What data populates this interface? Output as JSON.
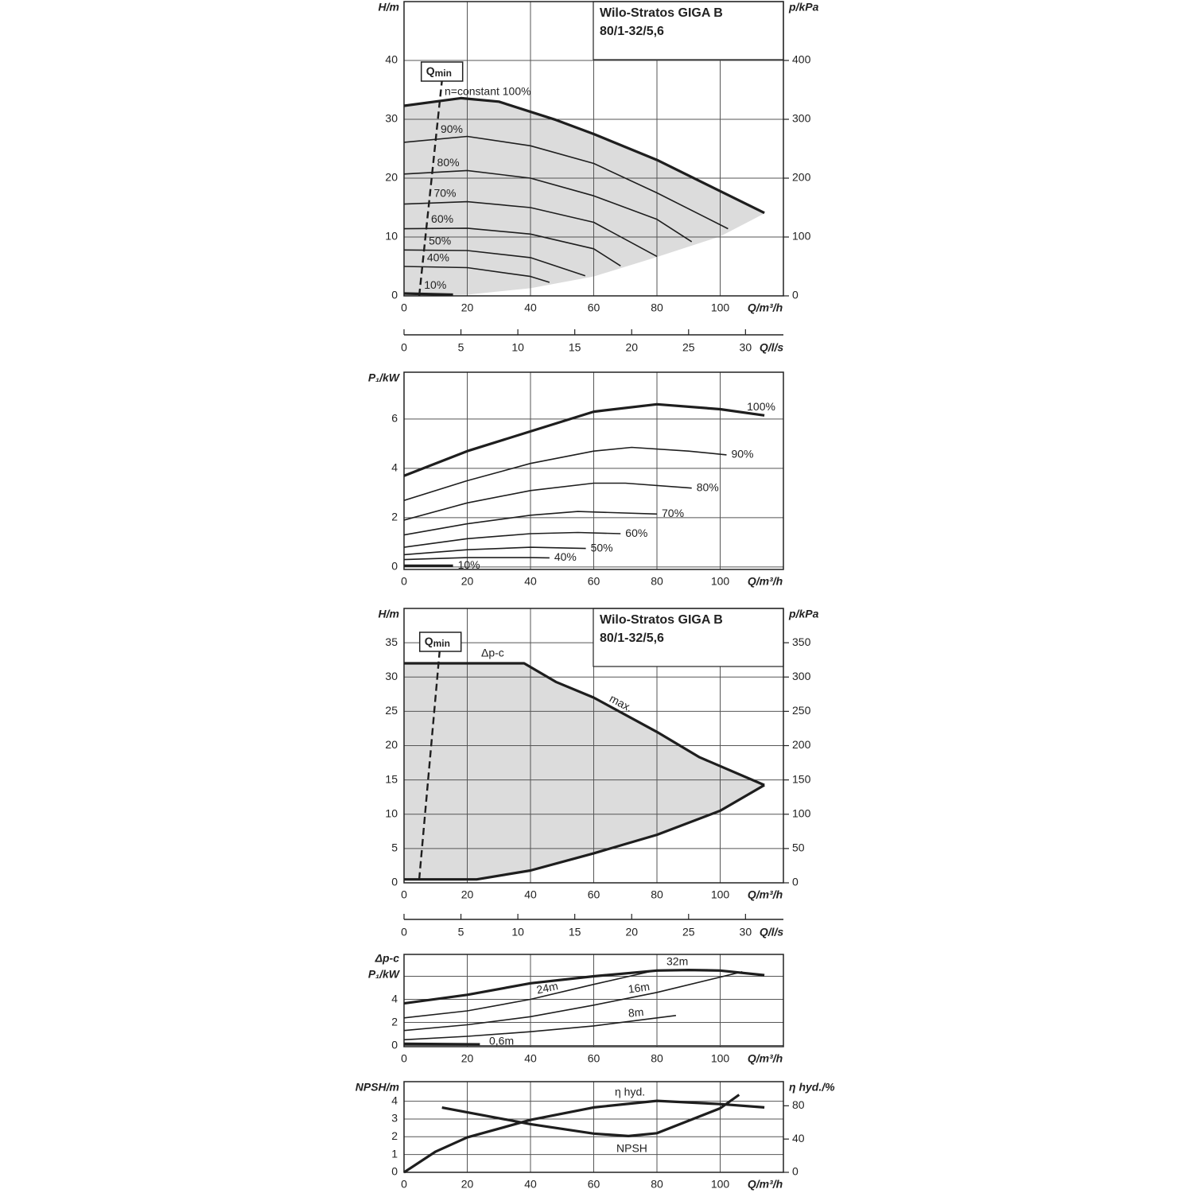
{
  "chart_data": [
    {
      "type": "line",
      "title_lines": [
        "Wilo-Stratos GIGA B",
        "80/1-32/5,6"
      ],
      "ylabel": [
        "H/m"
      ],
      "y2label": "p/kPa",
      "xlabel": "Q/m³/h",
      "xlim": [
        0,
        120
      ],
      "xticks": [
        0,
        20,
        40,
        60,
        80,
        100
      ],
      "ylim": [
        0,
        50
      ],
      "yticks": [
        0,
        10,
        20,
        30,
        40
      ],
      "y2lim": [
        0,
        500
      ],
      "y2ticks": [
        0,
        100,
        200,
        300,
        400
      ],
      "x2lim": [
        0,
        33.33
      ],
      "x2ticks": [
        0,
        5,
        10,
        15,
        20,
        25,
        30
      ],
      "x2label": "Q/l/s",
      "grid": true,
      "shaded": true,
      "shade_color": "#dcdcdc",
      "color": "#1e1e1e",
      "qmin": {
        "label": "Q",
        "sub": "min",
        "x": [
          4.8,
          12
        ],
        "values": [
          0,
          36.6
        ]
      },
      "shade_lower": {
        "x": [
          0,
          20,
          40,
          60,
          80,
          100,
          114
        ],
        "values": [
          0,
          0.2,
          1.3,
          3.3,
          6.6,
          10.1,
          14
        ]
      },
      "series": [
        {
          "name": "n=constant 100%",
          "width": 3.2,
          "x": [
            0,
            18,
            30,
            48,
            60,
            80,
            100,
            114
          ],
          "values": [
            32.3,
            33.6,
            33.0,
            29.9,
            27.5,
            23.1,
            17.8,
            14.1
          ]
        },
        {
          "name": "90%",
          "width": 1.6,
          "x": [
            0,
            20,
            40,
            60,
            80,
            102.5
          ],
          "values": [
            26.1,
            27.1,
            25.5,
            22.5,
            17.5,
            11.4
          ]
        },
        {
          "name": "80%",
          "width": 1.6,
          "x": [
            0,
            20,
            40,
            60,
            80,
            91
          ],
          "values": [
            20.7,
            21.3,
            20,
            17,
            13,
            9.2
          ]
        },
        {
          "name": "70%",
          "width": 1.6,
          "x": [
            0,
            20,
            40,
            60,
            80
          ],
          "values": [
            15.6,
            16,
            15,
            12.5,
            6.7
          ]
        },
        {
          "name": "60%",
          "width": 1.6,
          "x": [
            0,
            20,
            40,
            60,
            68.5
          ],
          "values": [
            11.4,
            11.5,
            10.5,
            8,
            5.1
          ]
        },
        {
          "name": "50%",
          "width": 1.6,
          "x": [
            0,
            20,
            40,
            57.3
          ],
          "values": [
            7.8,
            7.7,
            6.5,
            3.4
          ]
        },
        {
          "name": "40%",
          "width": 1.6,
          "x": [
            0,
            20,
            40,
            46
          ],
          "values": [
            5,
            4.8,
            3.3,
            2.3
          ]
        },
        {
          "name": "10%",
          "width": 3.2,
          "x": [
            0,
            15.5
          ],
          "values": [
            0.4,
            0.2
          ]
        }
      ]
    },
    {
      "type": "line",
      "ylabel": [
        "P₁/kW"
      ],
      "xlabel": "Q/m³/h",
      "xlim": [
        0,
        120
      ],
      "xticks": [
        0,
        20,
        40,
        60,
        80,
        100
      ],
      "ylim": [
        -0.1,
        7.9
      ],
      "yticks": [
        0,
        2,
        4,
        6
      ],
      "grid": true,
      "color": "#1e1e1e",
      "series": [
        {
          "name": "100%",
          "width": 3.2,
          "x": [
            0,
            20,
            40,
            60,
            80,
            100,
            114
          ],
          "values": [
            3.7,
            4.7,
            5.5,
            6.3,
            6.6,
            6.4,
            6.15
          ]
        },
        {
          "name": "90%",
          "width": 1.6,
          "x": [
            0,
            20,
            40,
            60,
            72,
            90,
            102
          ],
          "values": [
            2.7,
            3.5,
            4.2,
            4.7,
            4.85,
            4.7,
            4.55
          ]
        },
        {
          "name": "80%",
          "width": 1.6,
          "x": [
            0,
            20,
            40,
            60,
            70,
            91
          ],
          "values": [
            1.9,
            2.6,
            3.1,
            3.4,
            3.4,
            3.2
          ]
        },
        {
          "name": "70%",
          "width": 1.6,
          "x": [
            0,
            20,
            40,
            55,
            80
          ],
          "values": [
            1.3,
            1.75,
            2.1,
            2.25,
            2.15
          ]
        },
        {
          "name": "60%",
          "width": 1.6,
          "x": [
            0,
            20,
            40,
            55,
            68.5
          ],
          "values": [
            0.8,
            1.15,
            1.35,
            1.4,
            1.35
          ]
        },
        {
          "name": "50%",
          "width": 1.6,
          "x": [
            0,
            20,
            40,
            57.5
          ],
          "values": [
            0.5,
            0.7,
            0.8,
            0.75
          ]
        },
        {
          "name": "40%",
          "width": 1.6,
          "x": [
            0,
            20,
            40,
            46
          ],
          "values": [
            0.3,
            0.38,
            0.38,
            0.37
          ]
        },
        {
          "name": "10%",
          "width": 3.2,
          "x": [
            0,
            15.5
          ],
          "values": [
            0.05,
            0.05
          ]
        }
      ]
    },
    {
      "type": "line",
      "title_lines": [
        "Wilo-Stratos GIGA B",
        "80/1-32/5,6"
      ],
      "ylabel": [
        "H/m"
      ],
      "y2label": "p/kPa",
      "xlabel": "Q/m³/h",
      "xlim": [
        0,
        120
      ],
      "xticks": [
        0,
        20,
        40,
        60,
        80,
        100
      ],
      "ylim": [
        0,
        40
      ],
      "yticks": [
        0,
        5,
        10,
        15,
        20,
        25,
        30,
        35
      ],
      "y2lim": [
        0,
        400
      ],
      "y2ticks": [
        0,
        50,
        100,
        150,
        200,
        250,
        300,
        350
      ],
      "x2lim": [
        0,
        33.33
      ],
      "x2ticks": [
        0,
        5,
        10,
        15,
        20,
        25,
        30
      ],
      "x2label": "Q/l/s",
      "grid": true,
      "shaded": true,
      "shade_color": "#dcdcdc",
      "color": "#1e1e1e",
      "qmin": {
        "label": "Q",
        "sub": "min",
        "x": [
          4.8,
          11.5
        ],
        "values": [
          0.5,
          35
        ]
      },
      "annotations": [
        "Δp-c",
        "max."
      ],
      "series": [
        {
          "width": 3.2,
          "x": [
            0,
            38,
            48,
            60,
            80,
            93.5,
            114
          ],
          "values": [
            32,
            32,
            29.3,
            27,
            22,
            18.3,
            14.25
          ]
        },
        {
          "width": 3.2,
          "x": [
            0,
            23,
            40,
            60,
            80,
            100,
            114
          ],
          "values": [
            0.5,
            0.5,
            1.8,
            4.3,
            7,
            10.5,
            14.25
          ]
        }
      ]
    },
    {
      "type": "line",
      "ylabel": [
        "Δp-c",
        "P₁/kW"
      ],
      "xlabel": "Q/m³/h",
      "xlim": [
        0,
        120
      ],
      "xticks": [
        0,
        20,
        40,
        60,
        80,
        100
      ],
      "ylim": [
        -0.1,
        7.9
      ],
      "yticks": [
        0,
        2,
        4
      ],
      "ygrid": [
        0,
        2,
        4,
        6
      ],
      "grid": true,
      "color": "#1e1e1e",
      "series": [
        {
          "name": "32m",
          "width": 3.2,
          "x": [
            0,
            20,
            40,
            60,
            80,
            90,
            100,
            114
          ],
          "values": [
            3.65,
            4.4,
            5.4,
            6.0,
            6.5,
            6.55,
            6.5,
            6.1
          ]
        },
        {
          "name": "24m",
          "width": 1.6,
          "x": [
            0,
            20,
            40,
            60,
            80
          ],
          "values": [
            2.4,
            3.0,
            4.0,
            5.3,
            6.55
          ]
        },
        {
          "name": "16m",
          "width": 1.6,
          "x": [
            0,
            20,
            40,
            60,
            80,
            107
          ],
          "values": [
            1.3,
            1.8,
            2.5,
            3.5,
            4.6,
            6.4
          ]
        },
        {
          "name": "8m",
          "width": 1.6,
          "x": [
            0,
            20,
            40,
            60,
            86
          ],
          "values": [
            0.5,
            0.8,
            1.2,
            1.7,
            2.6
          ]
        },
        {
          "name": "0,6m",
          "width": 3.2,
          "x": [
            0,
            24
          ],
          "values": [
            0.15,
            0.1
          ]
        }
      ]
    },
    {
      "type": "line",
      "ylabel": [
        "NPSH/m"
      ],
      "y2label": "η hyd./%",
      "xlabel": "Q/m³/h",
      "xlim": [
        0,
        120
      ],
      "xticks": [
        0,
        20,
        40,
        60,
        80,
        100
      ],
      "ylim": [
        0,
        5.1
      ],
      "yticks": [
        0,
        1,
        2,
        3,
        4
      ],
      "y2lim": [
        0,
        109
      ],
      "y2ticks": [
        0,
        40,
        80
      ],
      "grid": true,
      "color": "#1e1e1e",
      "series": [
        {
          "name": "η hyd.",
          "axis": "y2",
          "width": 3.2,
          "x": [
            0,
            10,
            20,
            40,
            60,
            80,
            100,
            114
          ],
          "values": [
            0,
            25,
            42,
            63,
            78,
            86,
            82,
            78
          ]
        },
        {
          "name": "NPSH",
          "width": 3.2,
          "x": [
            12,
            40,
            60,
            71,
            80,
            100,
            106
          ],
          "values": [
            3.64,
            2.71,
            2.18,
            2.04,
            2.2,
            3.6,
            4.36
          ]
        }
      ]
    }
  ]
}
